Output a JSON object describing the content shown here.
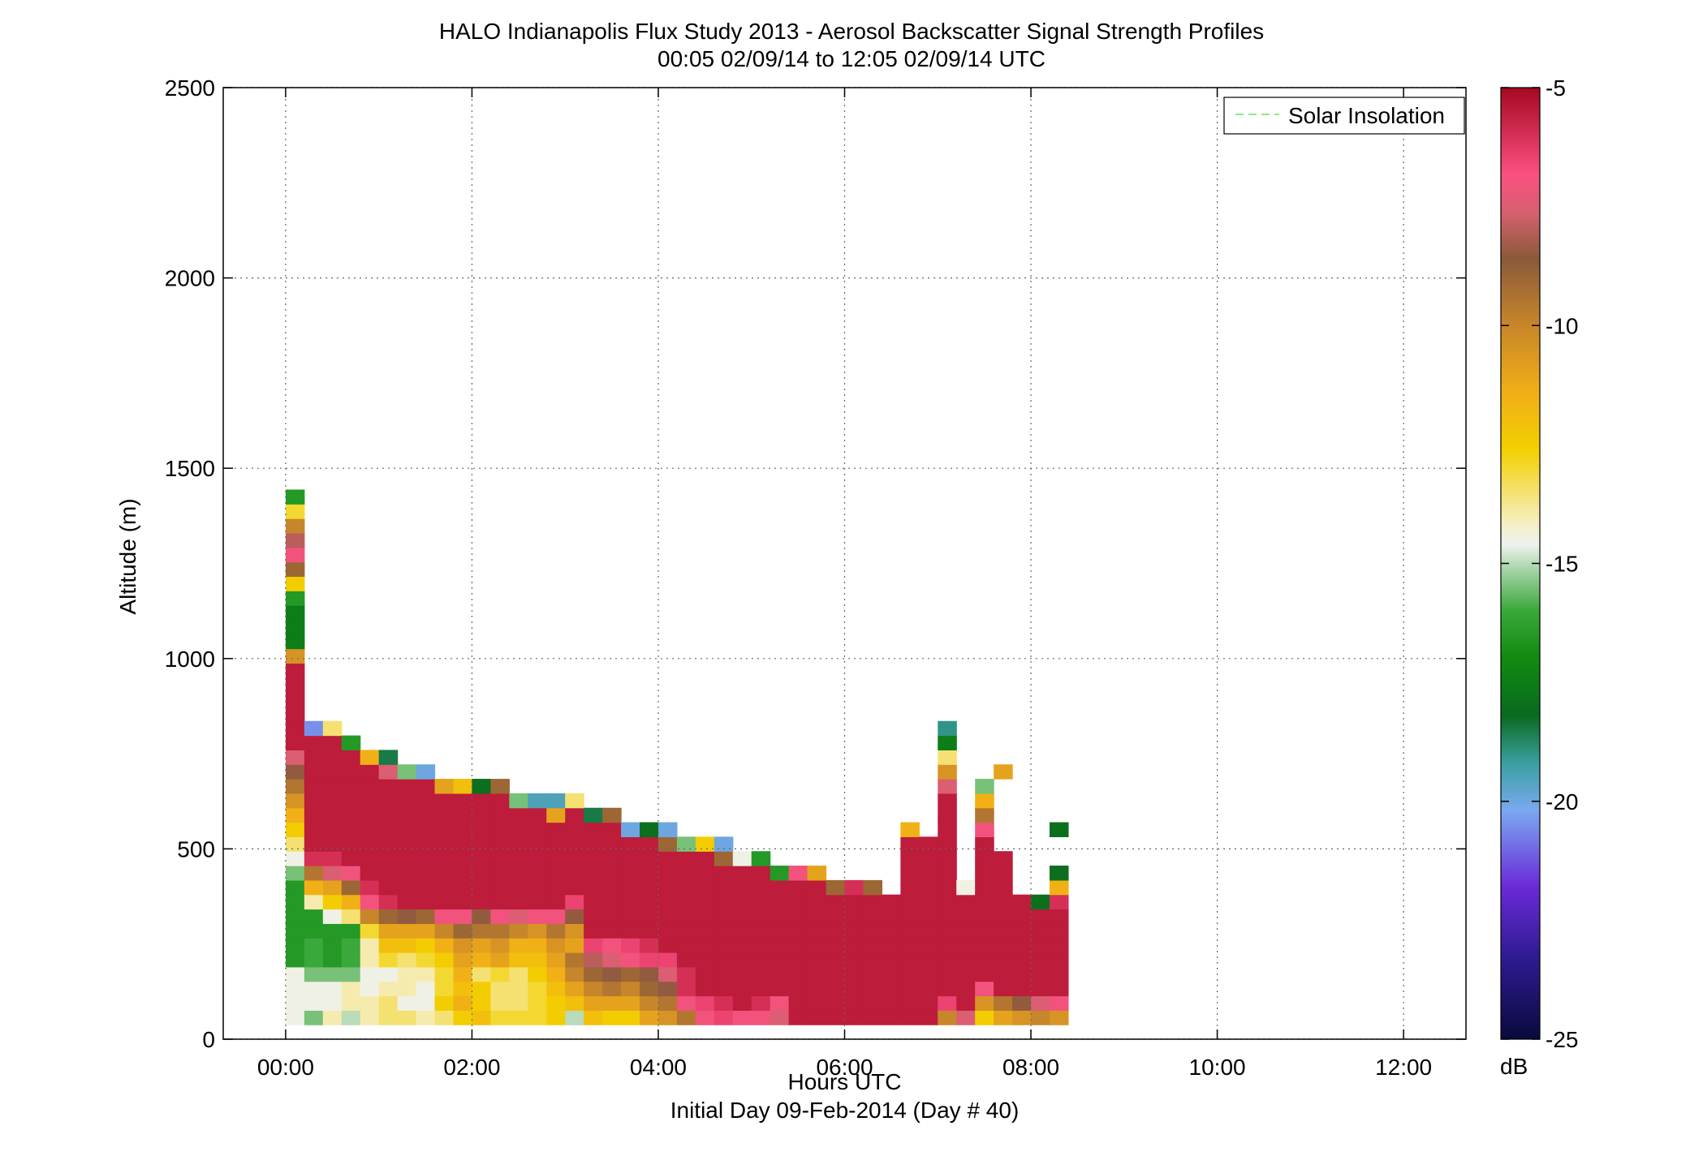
{
  "chart_data": {
    "type": "heatmap",
    "title": "HALO Indianapolis Flux Study 2013 - Aerosol Backscatter Signal Strength Profiles",
    "subtitle": "00:05 02/09/14 to 12:05 02/09/14  UTC",
    "xlabel": "Hours UTC",
    "xlabel2": "Initial Day 09-Feb-2014 (Day # 40)",
    "ylabel": "Altitude (m)",
    "xlim": [
      -0.67,
      12.67
    ],
    "ylim": [
      0,
      2500
    ],
    "x_ticks": [
      "00:00",
      "02:00",
      "04:00",
      "06:00",
      "08:00",
      "10:00",
      "12:00"
    ],
    "y_ticks": [
      "0",
      "500",
      "1000",
      "1500",
      "2000",
      "2500"
    ],
    "colorbar": {
      "label": "dB",
      "min": -25,
      "max": -5,
      "ticks": [
        "-5",
        "-10",
        "-15",
        "-20",
        "-25"
      ]
    },
    "legend": {
      "entries": [
        "Solar Insolation"
      ],
      "position": "top-right",
      "line_color": "#8de88d"
    },
    "grid": true,
    "x_step_hours": 0.2,
    "y_step_m": 38,
    "y_base_m": 38,
    "columns": [
      [
        -14.5,
        -14.5,
        -14.5,
        -14.5,
        -16.5,
        -16.5,
        -16.5,
        -16.5,
        -16.5,
        -16.5,
        -15.5,
        -14.5,
        -13.5,
        -12.5,
        -11.5,
        -10.5,
        -9.5,
        -8.5,
        -7.5,
        -5.5,
        -5.5,
        -5.5,
        -5.5,
        -5.5,
        -5.5,
        -10.5,
        -17.5,
        -17.5,
        -17.5,
        -16.5,
        -12.5,
        -9.0,
        -7.0,
        -8.0,
        -10.0,
        -13.0,
        -16.5
      ],
      [
        -15.5,
        -14.5,
        -14.5,
        -15.5,
        -16.0,
        -16.0,
        -16.5,
        -16.5,
        -14.0,
        -11.5,
        -9.5,
        -6.0,
        -5.5,
        -5.5,
        -5.5,
        -5.5,
        -5.5,
        -5.5,
        -5.5,
        -5.5,
        -20.5
      ],
      [
        -14.0,
        -14.5,
        -14.5,
        -15.5,
        -16.5,
        -16.5,
        -16.5,
        -14.5,
        -12.5,
        -11.0,
        -7.5,
        -6.0,
        -5.5,
        -5.5,
        -5.5,
        -5.5,
        -5.5,
        -5.5,
        -5.5,
        -5.5,
        -13.5
      ],
      [
        -15.0,
        -14.0,
        -14.0,
        -15.5,
        -16.0,
        -16.0,
        -16.5,
        -13.5,
        -11.5,
        -9.0,
        -7.0,
        -5.5,
        -5.5,
        -5.5,
        -5.5,
        -5.5,
        -5.5,
        -5.5,
        -5.5,
        -16.5
      ],
      [
        -14.0,
        -14.0,
        -14.5,
        -14.5,
        -14.0,
        -14.0,
        -13.0,
        -10.0,
        -7.0,
        -6.0,
        -5.5,
        -5.5,
        -5.5,
        -5.5,
        -5.5,
        -5.5,
        -5.5,
        -5.5,
        -11.5
      ],
      [
        -13.5,
        -13.5,
        -14.0,
        -14.5,
        -13.0,
        -12.0,
        -11.0,
        -9.0,
        -6.0,
        -5.5,
        -5.5,
        -5.5,
        -5.5,
        -5.5,
        -5.5,
        -5.5,
        -5.5,
        -7.5,
        -18.5
      ],
      [
        -13.5,
        -14.5,
        -14.0,
        -14.0,
        -13.5,
        -12.0,
        -11.0,
        -8.5,
        -5.5,
        -5.5,
        -5.5,
        -5.5,
        -5.5,
        -5.5,
        -5.5,
        -5.5,
        -5.5,
        -15.5
      ],
      [
        -14.0,
        -14.5,
        -14.5,
        -14.0,
        -13.0,
        -12.5,
        -11.0,
        -9.0,
        -5.5,
        -5.5,
        -5.5,
        -5.5,
        -5.5,
        -5.5,
        -5.5,
        -5.5,
        -5.5,
        -20.0
      ],
      [
        -13.5,
        -12.5,
        -13.0,
        -13.0,
        -12.5,
        -11.5,
        -10.0,
        -7.0,
        -5.5,
        -5.5,
        -5.5,
        -5.5,
        -5.5,
        -5.5,
        -5.5,
        -5.5,
        -11.0
      ],
      [
        -12.5,
        -11.5,
        -12.0,
        -11.5,
        -11.0,
        -10.5,
        -9.0,
        -7.0,
        -5.5,
        -5.5,
        -5.5,
        -5.5,
        -5.5,
        -5.5,
        -5.5,
        -5.5,
        -12.0
      ],
      [
        -12.0,
        -12.5,
        -12.5,
        -13.5,
        -11.5,
        -11.0,
        -9.5,
        -8.5,
        -5.5,
        -5.5,
        -5.5,
        -5.5,
        -5.5,
        -5.5,
        -5.5,
        -5.5,
        -18.0
      ],
      [
        -13.0,
        -13.5,
        -13.5,
        -13.0,
        -11.0,
        -10.5,
        -9.5,
        -7.0,
        -5.5,
        -5.5,
        -5.5,
        -5.5,
        -5.5,
        -5.5,
        -5.5,
        -5.5,
        -9.0
      ],
      [
        -13.0,
        -13.5,
        -13.5,
        -13.5,
        -12.0,
        -11.5,
        -10.0,
        -7.5,
        -5.5,
        -5.5,
        -5.5,
        -5.5,
        -5.5,
        -5.5,
        -5.5,
        -15.5
      ],
      [
        -13.0,
        -13.0,
        -13.0,
        -12.5,
        -12.0,
        -11.5,
        -10.5,
        -7.0,
        -5.5,
        -5.5,
        -5.5,
        -5.5,
        -5.5,
        -5.5,
        -5.5,
        -19.5
      ],
      [
        -12.5,
        -12.5,
        -12.0,
        -11.5,
        -11.0,
        -10.5,
        -9.5,
        -7.0,
        -5.5,
        -5.5,
        -5.5,
        -5.5,
        -5.5,
        -5.5,
        -11.0,
        -19.5
      ],
      [
        -15.0,
        -12.0,
        -11.0,
        -10.0,
        -9.5,
        -11.0,
        -10.5,
        -8.5,
        -6.5,
        -5.5,
        -5.5,
        -5.5,
        -5.5,
        -5.5,
        -5.5,
        -13.5
      ],
      [
        -12.0,
        -11.0,
        -10.0,
        -9.0,
        -8.0,
        -6.5,
        -5.5,
        -5.5,
        -5.5,
        -5.5,
        -5.5,
        -5.5,
        -5.5,
        -5.5,
        -18.5
      ],
      [
        -12.5,
        -11.0,
        -9.5,
        -8.5,
        -7.5,
        -7.0,
        -5.5,
        -5.5,
        -5.5,
        -5.5,
        -5.5,
        -5.5,
        -5.5,
        -5.5,
        -9.0
      ],
      [
        -12.5,
        -11.0,
        -10.0,
        -9.0,
        -7.0,
        -6.5,
        -5.5,
        -5.5,
        -5.5,
        -5.5,
        -5.5,
        -5.5,
        -5.5,
        -20.0
      ],
      [
        -11.0,
        -10.0,
        -9.0,
        -8.5,
        -6.5,
        -6.0,
        -5.5,
        -5.5,
        -5.5,
        -5.5,
        -5.5,
        -5.5,
        -5.5,
        -18.0
      ],
      [
        -10.5,
        -9.5,
        -8.5,
        -7.5,
        -6.5,
        -5.5,
        -5.5,
        -5.5,
        -5.5,
        -5.5,
        -5.5,
        -5.5,
        -9.0,
        -20.0
      ],
      [
        -9.5,
        -7.0,
        -6.0,
        -6.0,
        -5.5,
        -5.5,
        -5.5,
        -5.5,
        -5.5,
        -5.5,
        -5.5,
        -5.5,
        -15.5
      ],
      [
        -7.0,
        -6.5,
        -5.5,
        -5.5,
        -5.5,
        -5.5,
        -5.5,
        -5.5,
        -5.5,
        -5.5,
        -5.5,
        -5.5,
        -12.5
      ],
      [
        -6.5,
        -6.0,
        -5.5,
        -5.5,
        -5.5,
        -5.5,
        -5.5,
        -5.5,
        -5.5,
        -5.5,
        -5.5,
        -9.0,
        -20.0
      ],
      [
        -7.0,
        -5.5,
        -5.5,
        -5.5,
        -5.5,
        -5.5,
        -5.5,
        -5.5,
        -5.5,
        -5.5,
        -5.5,
        -14.5
      ],
      [
        -7.0,
        -6.0,
        -5.5,
        -5.5,
        -5.5,
        -5.5,
        -5.5,
        -5.5,
        -5.5,
        -5.5,
        -5.5,
        -16.5
      ],
      [
        -7.5,
        -7.0,
        -5.5,
        -5.5,
        -5.5,
        -5.5,
        -5.5,
        -5.5,
        -5.5,
        -5.5,
        -16.5
      ],
      [
        -5.5,
        -5.5,
        -5.5,
        -5.5,
        -5.5,
        -5.5,
        -5.5,
        -5.5,
        -5.5,
        -5.5,
        -7.0
      ],
      [
        -5.5,
        -5.5,
        -5.5,
        -5.5,
        -5.5,
        -5.5,
        -5.5,
        -5.5,
        -5.5,
        -5.5,
        -11.0
      ],
      [
        -5.5,
        -5.5,
        -5.5,
        -5.5,
        -5.5,
        -5.5,
        -5.5,
        -5.5,
        -5.5,
        -9.0
      ],
      [
        -5.5,
        -5.5,
        -5.5,
        -5.5,
        -5.5,
        -5.5,
        -5.5,
        -5.5,
        -5.5,
        -6.0
      ],
      [
        -5.5,
        -5.5,
        -5.5,
        -5.5,
        -5.5,
        -5.5,
        -5.5,
        -5.5,
        -5.5,
        -9.0
      ],
      [
        -5.5,
        -5.5,
        -5.5,
        -5.5,
        -5.5,
        -5.5,
        -5.5,
        -5.5,
        -5.5
      ],
      [
        -5.5,
        -5.5,
        -5.5,
        -5.5,
        -5.5,
        -5.5,
        -5.5,
        -5.5,
        -5.5,
        -5.5,
        -5.5,
        -5.5,
        -5.5,
        -11.5
      ],
      [
        -5.5,
        -5.5,
        -5.5,
        -5.5,
        -5.5,
        -5.5,
        -5.5,
        -5.5,
        -5.5,
        -5.5,
        -5.5,
        -5.5,
        -5.5
      ],
      [
        -10.0,
        -6.5,
        -5.5,
        -5.5,
        -5.5,
        -5.5,
        -5.5,
        -5.5,
        -5.5,
        -5.5,
        -5.5,
        -5.5,
        -5.5,
        -5.5,
        -5.5,
        -5.5,
        -7.5,
        -10.5,
        -13.5,
        -17.5,
        -19.0
      ],
      [
        -7.5,
        -5.5,
        -5.5,
        -5.5,
        -5.5,
        -5.5,
        -5.5,
        -5.5,
        -5.5,
        -14.5
      ],
      [
        -12.5,
        -10.5,
        -7.0,
        -5.5,
        -5.5,
        -5.5,
        -5.5,
        -5.5,
        -5.5,
        -5.5,
        -5.5,
        -5.5,
        -5.5,
        -7.0,
        -9.5,
        -11.5,
        -15.5
      ],
      [
        -11.0,
        -9.5,
        -5.5,
        -5.5,
        -5.5,
        -5.5,
        -5.5,
        -5.5,
        -5.5,
        -5.5,
        -5.5,
        -5.5,
        null,
        null,
        null,
        null,
        null,
        -11.0
      ],
      [
        -10.5,
        -8.5,
        -5.5,
        -5.5,
        -5.5,
        -5.5,
        -5.5,
        -5.5,
        -5.5
      ],
      [
        -10.0,
        -7.5,
        -5.5,
        -5.5,
        -5.5,
        -5.5,
        -5.5,
        -5.5,
        -18.0
      ],
      [
        -10.5,
        -7.0,
        -5.5,
        -5.5,
        -5.5,
        -5.5,
        -5.5,
        -5.5,
        -6.0,
        -11.5,
        -18.0,
        null,
        null,
        -18.0
      ]
    ]
  }
}
